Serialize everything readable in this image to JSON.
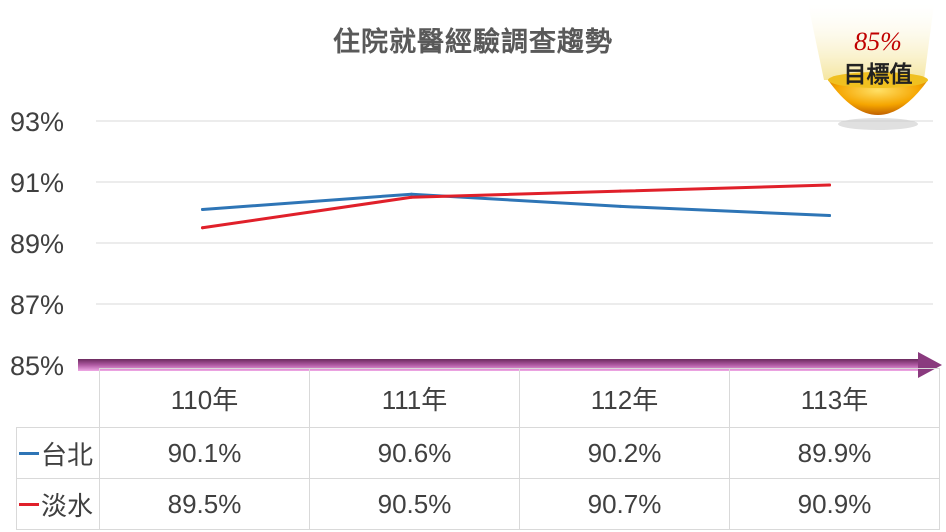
{
  "chart_data": {
    "type": "line",
    "title": "住院就醫經驗調查趨勢",
    "categories": [
      "110年",
      "111年",
      "112年",
      "113年"
    ],
    "series": [
      {
        "name": "台北",
        "values": [
          90.1,
          90.6,
          90.2,
          89.9
        ],
        "color": "#2e75b6",
        "labels": [
          "90.1%",
          "90.6%",
          "90.2%",
          "89.9%"
        ]
      },
      {
        "name": "淡水",
        "values": [
          89.5,
          90.5,
          90.7,
          90.9
        ],
        "color": "#e0202a",
        "labels": [
          "89.5%",
          "90.5%",
          "90.7%",
          "90.9%"
        ]
      }
    ],
    "ylim": [
      85,
      93
    ],
    "yticks": [
      85,
      87,
      89,
      91,
      93
    ],
    "ytick_labels": [
      "85%",
      "87%",
      "89%",
      "91%",
      "93%"
    ],
    "target": {
      "value": 85,
      "value_label": "85%",
      "label": "目標值"
    },
    "grid": true,
    "legend": "data-table"
  }
}
